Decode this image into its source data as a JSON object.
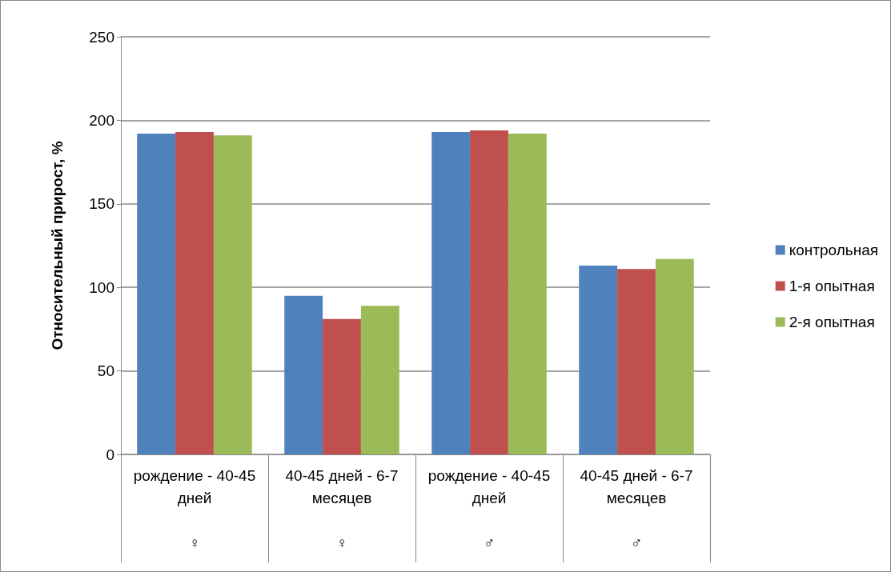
{
  "chart_data": {
    "type": "bar",
    "ylabel": "Относительный прирост, %",
    "categories": [
      "рождение - 40-45 дней\n♀",
      "40-45 дней - 6-7 месяцев\n♀",
      "рождение - 40-45 дней\n♂",
      "40-45 дней - 6-7 месяцев\n♂"
    ],
    "series": [
      {
        "name": "контрольная",
        "color": "#4f81bd",
        "values": [
          192,
          95,
          193,
          113
        ]
      },
      {
        "name": "1-я опытная",
        "color": "#c0504d",
        "values": [
          193,
          81,
          194,
          111
        ]
      },
      {
        "name": "2-я опытная",
        "color": "#9bbb59",
        "values": [
          191,
          89,
          192,
          117
        ]
      }
    ],
    "ylim": [
      0,
      250
    ],
    "yticks": [
      0,
      50,
      100,
      150,
      200,
      250
    ],
    "grid": "y",
    "legend": "right"
  }
}
